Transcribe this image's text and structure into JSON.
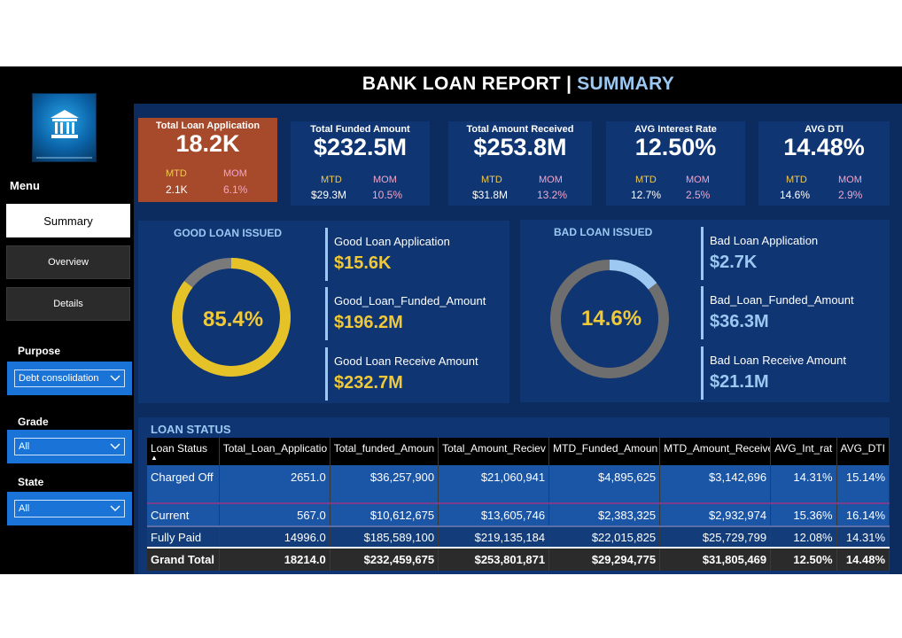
{
  "header": {
    "title": "BANK LOAN REPORT",
    "separator": "|",
    "subtitle": "SUMMARY"
  },
  "sidebar": {
    "menu_label": "Menu",
    "nav": [
      {
        "label": "Summary",
        "active": true
      },
      {
        "label": "Overview",
        "active": false
      },
      {
        "label": "Details",
        "active": false
      }
    ],
    "filters": {
      "purpose": {
        "label": "Purpose",
        "value": "Debt consolidation"
      },
      "grade": {
        "label": "Grade",
        "value": "All"
      },
      "state": {
        "label": "State",
        "value": "All"
      }
    }
  },
  "kpis": [
    {
      "title": "Total Loan Application",
      "value": "18.2K",
      "mtd_label": "MTD",
      "mom_label": "MOM",
      "mtd": "2.1K",
      "mom": "6.1%"
    },
    {
      "title": "Total Funded Amount",
      "value": "$232.5M",
      "mtd_label": "MTD",
      "mom_label": "MOM",
      "mtd": "$29.3M",
      "mom": "10.5%"
    },
    {
      "title": "Total Amount Received",
      "value": "$253.8M",
      "mtd_label": "MTD",
      "mom_label": "MOM",
      "mtd": "$31.8M",
      "mom": "13.2%"
    },
    {
      "title": "AVG Interest Rate",
      "value": "12.50%",
      "mtd_label": "MTD",
      "mom_label": "MOM",
      "mtd": "12.7%",
      "mom": "2.5%"
    },
    {
      "title": "AVG DTI",
      "value": "14.48%",
      "mtd_label": "MTD",
      "mom_label": "MOM",
      "mtd": "14.6%",
      "mom": "2.9%"
    }
  ],
  "good_loan": {
    "title": "GOOD LOAN ISSUED",
    "percent_label": "85.4%",
    "percent": 85.4,
    "colors": {
      "fill": "#e6c229",
      "rest": "#7a7a7a"
    },
    "metrics": [
      {
        "label": "Good Loan Application",
        "value": "$15.6K"
      },
      {
        "label": "Good_Loan_Funded_Amount",
        "value": "$196.2M"
      },
      {
        "label": "Good Loan Receive Amount",
        "value": "$232.7M"
      }
    ]
  },
  "bad_loan": {
    "title": "BAD LOAN ISSUED",
    "percent_label": "14.6%",
    "percent": 14.6,
    "colors": {
      "fill": "#9cc8f2",
      "rest": "#6e6e6e"
    },
    "metrics": [
      {
        "label": "Bad Loan Application",
        "value": "$2.7K"
      },
      {
        "label": "Bad_Loan_Funded_Amount",
        "value": "$36.3M"
      },
      {
        "label": "Bad Loan Receive Amount",
        "value": "$21.1M"
      }
    ]
  },
  "loan_status": {
    "title": "LOAN STATUS",
    "columns": [
      "Loan Status",
      "Total_Loan_Applicatio",
      "Total_funded_Amoun",
      "Total_Amount_Reciev",
      "MTD_Funded_Amoun",
      "MTD_Amount_Receive",
      "AVG_Int_rat",
      "AVG_DTI"
    ],
    "rows": [
      [
        "Charged Off",
        "2651.0",
        "$36,257,900",
        "$21,060,941",
        "$4,895,625",
        "$3,142,696",
        "14.31%",
        "15.14%"
      ],
      [
        "Current",
        "567.0",
        "$10,612,675",
        "$13,605,746",
        "$2,383,325",
        "$2,932,974",
        "15.36%",
        "16.14%"
      ],
      [
        "Fully Paid",
        "14996.0",
        "$185,589,100",
        "$219,135,184",
        "$22,015,825",
        "$25,729,799",
        "12.08%",
        "14.31%"
      ]
    ],
    "total": [
      "Grand Total",
      "18214.0",
      "$232,459,675",
      "$253,801,871",
      "$29,294,775",
      "$31,805,469",
      "12.50%",
      "14.48%"
    ]
  }
}
